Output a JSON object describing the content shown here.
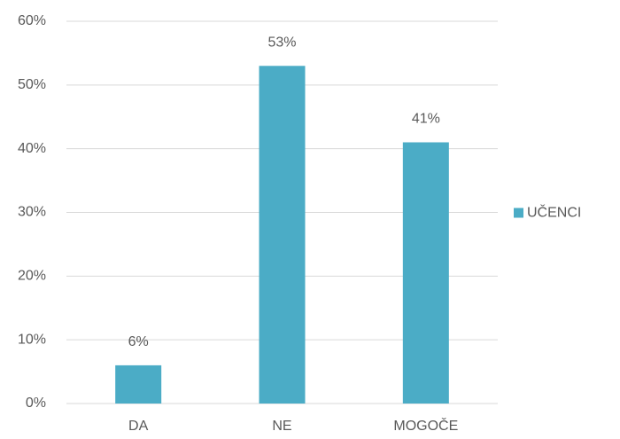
{
  "chart_data": {
    "type": "bar",
    "categories": [
      "DA",
      "NE",
      "MOGOČE"
    ],
    "series": [
      {
        "name": "UČENCI",
        "color": "#4bacc6",
        "values": [
          6,
          53,
          41
        ],
        "value_labels": [
          "6%",
          "53%",
          "41%"
        ]
      }
    ],
    "ylim": [
      0,
      60
    ],
    "yticks": [
      {
        "value": 0,
        "label": "0%"
      },
      {
        "value": 10,
        "label": "10%"
      },
      {
        "value": 20,
        "label": "20%"
      },
      {
        "value": 30,
        "label": "30%"
      },
      {
        "value": 40,
        "label": "40%"
      },
      {
        "value": 50,
        "label": "50%"
      },
      {
        "value": 60,
        "label": "60%"
      }
    ],
    "grid": true,
    "legend": "right"
  }
}
